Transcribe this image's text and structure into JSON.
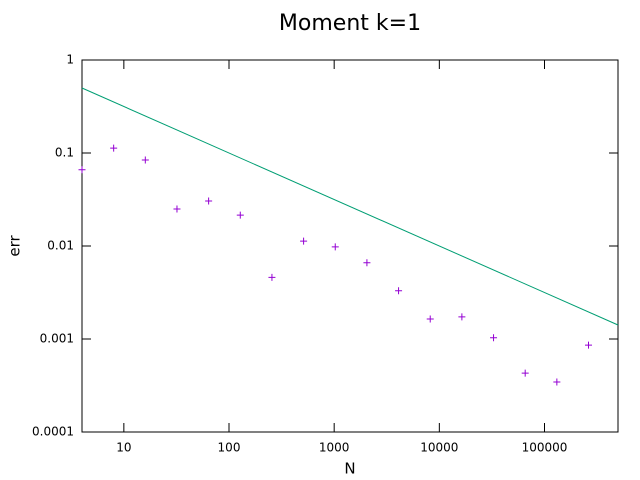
{
  "chart_data": {
    "type": "scatter",
    "title": "Moment k=1",
    "xlabel": "N",
    "ylabel": "err",
    "xscale": "log",
    "yscale": "log",
    "xlim": [
      4,
      500000
    ],
    "ylim": [
      0.0001,
      1
    ],
    "xticks": [
      10,
      100,
      1000,
      10000,
      100000
    ],
    "yticks": [
      0.0001,
      0.001,
      0.01,
      0.1,
      1
    ],
    "series": [
      {
        "mode": "markers",
        "color": "#9400d3",
        "x": [
          4,
          8,
          16,
          32,
          64,
          128,
          256,
          512,
          1024,
          2048,
          4096,
          8192,
          16384,
          32768,
          65536,
          131072,
          262144
        ],
        "values": [
          0.066,
          0.113,
          0.084,
          0.025,
          0.0305,
          0.0215,
          0.0046,
          0.0113,
          0.0098,
          0.0066,
          0.0033,
          0.00164,
          0.00173,
          0.00103,
          0.00043,
          0.000345,
          0.00086
        ]
      },
      {
        "mode": "lines",
        "color": "#009e73",
        "x": [
          4,
          500000
        ],
        "values": [
          0.5,
          0.001414
        ]
      }
    ]
  }
}
